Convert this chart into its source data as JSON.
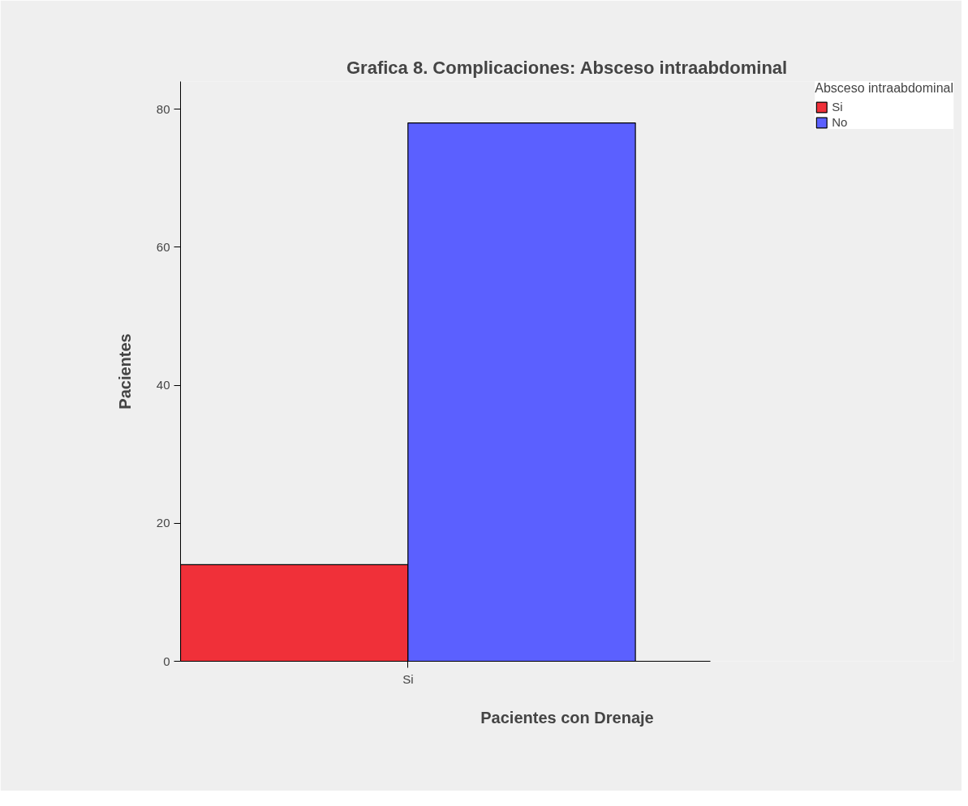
{
  "chart_data": {
    "type": "bar",
    "title": "Grafica 8. Complicaciones: Absceso intraabdominal",
    "xlabel": "Pacientes con Drenaje",
    "ylabel": "Pacientes",
    "legend_title": "Absceso intraabdominal",
    "categories": [
      "Si"
    ],
    "series": [
      {
        "name": "Si",
        "color": "#f03039",
        "values": [
          14
        ]
      },
      {
        "name": "No",
        "color": "#5b60ff",
        "values": [
          78
        ]
      }
    ],
    "ylim": [
      0,
      84
    ],
    "yticks": [
      0,
      20,
      40,
      60,
      80
    ],
    "grid": false,
    "legend": "top right"
  }
}
